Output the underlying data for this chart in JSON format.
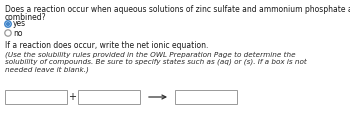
{
  "title_line1": "Does a reaction occur when aqueous solutions of zinc sulfate and ammonium phosphate are",
  "title_line2": "combined?",
  "radio_yes_label": "yes",
  "radio_no_label": "no",
  "radio_yes_selected": true,
  "section_label": "If a reaction does occur, write the net ionic equation.",
  "italic_text_line1": "(Use the solubility rules provided in the OWL Preparation Page to determine the",
  "italic_text_line2": "solubility of compounds. Be sure to specify states such as (aq) or (s). If a box is not",
  "italic_text_line3": "needed leave it blank.)",
  "bg_color": "#ffffff",
  "box_color": "#ffffff",
  "box_border": "#999999",
  "text_color": "#1a1a1a",
  "italic_color": "#2a2a2a",
  "radio_selected_border": "#4488cc",
  "radio_selected_inner": "#4488cc",
  "radio_unselected_border": "#999999",
  "arrow_color": "#333333",
  "fig_width": 3.5,
  "fig_height": 1.21,
  "dpi": 100
}
